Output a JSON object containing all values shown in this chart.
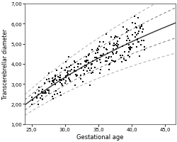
{
  "title": "",
  "xlabel": "Gestational age",
  "ylabel": "Transcerebrellar diameter",
  "xlim": [
    24.0,
    46.5
  ],
  "ylim": [
    1.0,
    7.0
  ],
  "xticks": [
    25.0,
    30.0,
    35.0,
    40.0,
    45.0
  ],
  "yticks": [
    1.0,
    2.0,
    3.0,
    4.0,
    5.0,
    6.0,
    7.0
  ],
  "xticklabels": [
    "25,0",
    "30,0",
    "35,0",
    "40,0",
    "45,0"
  ],
  "yticklabels": [
    "1,00",
    "2,00",
    "3,00",
    "4,00",
    "5,00",
    "6,00",
    "7,00"
  ],
  "mean_line_color": "#333333",
  "ci_line_color": "#777777",
  "pi_line_color": "#aaaaaa",
  "dot_color": "#111111",
  "background_color": "#ffffff",
  "a_mean": -8.5,
  "b_mean": 3.1,
  "sigma_a": 0.28,
  "sigma_b": 0.022,
  "scatter_seed": 99,
  "n_points": 250
}
